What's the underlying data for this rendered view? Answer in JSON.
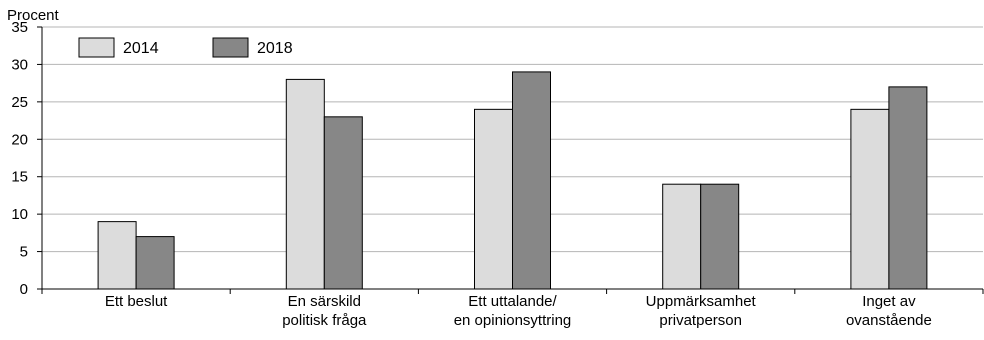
{
  "chart_data": {
    "type": "bar",
    "ylabel": "Procent",
    "ylim": [
      0,
      35
    ],
    "yticks": [
      0,
      5,
      10,
      15,
      20,
      25,
      30,
      35
    ],
    "grid": true,
    "legend_position": "top-left",
    "categories": [
      [
        "Ett beslut"
      ],
      [
        "En särskild",
        "politisk fråga"
      ],
      [
        "Ett uttalande/",
        "en opinionsyttring"
      ],
      [
        "Uppmärksamhet",
        "privatperson"
      ],
      [
        "Inget av",
        "ovanstående"
      ]
    ],
    "series": [
      {
        "name": "2014",
        "color": "#dcdcdc",
        "values": [
          9,
          28,
          24,
          14,
          24
        ]
      },
      {
        "name": "2018",
        "color": "#878787",
        "values": [
          7,
          23,
          29,
          14,
          27
        ]
      }
    ]
  }
}
